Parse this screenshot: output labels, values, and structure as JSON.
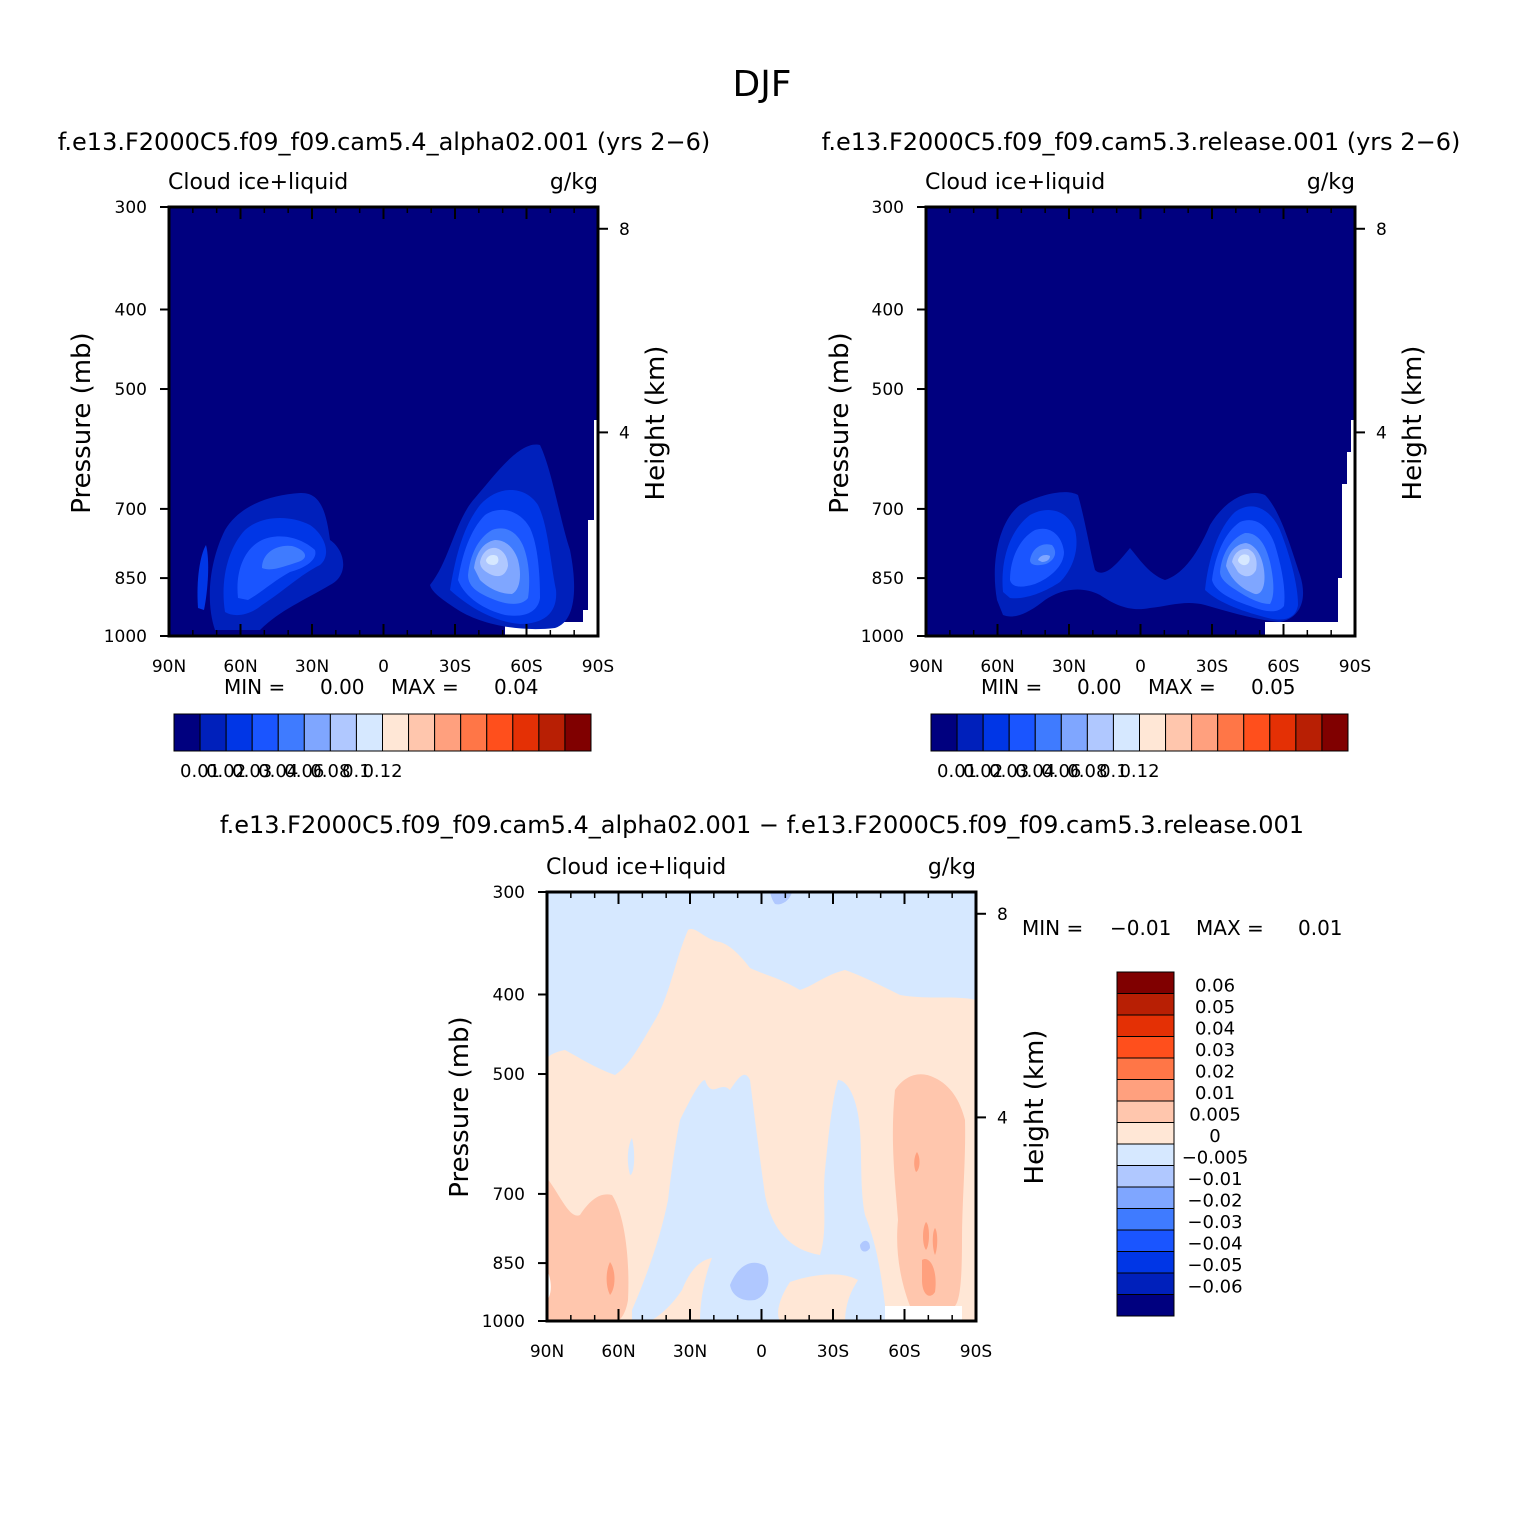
{
  "figure": {
    "title": "DJF"
  },
  "palettes": {
    "abs": [
      "#00007f",
      "#0020bb",
      "#0036e6",
      "#1a55ff",
      "#3f7bff",
      "#7fa6ff",
      "#b0c8ff",
      "#d6e8ff",
      "#ffe7d6",
      "#ffc6ad",
      "#ffa07e",
      "#ff7647",
      "#ff4f1c",
      "#e43005",
      "#b81f04",
      "#800000"
    ],
    "diff": [
      "#00007f",
      "#0020bb",
      "#0036e6",
      "#1a55ff",
      "#3f7bff",
      "#7fa6ff",
      "#b0c8ff",
      "#d6e8ff",
      "#ffe7d6",
      "#ffc6ad",
      "#ffa07e",
      "#ff7647",
      "#ff4f1c",
      "#e43005",
      "#b81f04",
      "#800000"
    ]
  },
  "shared_axes": {
    "x_ticks": [
      "90N",
      "60N",
      "30N",
      "0",
      "30S",
      "60S",
      "90S"
    ],
    "y_ticks": [
      "300",
      "400",
      "500",
      "700",
      "850",
      "1000"
    ],
    "y_right_ticks": [
      "8",
      "4"
    ],
    "ylabel": "Pressure (mb)",
    "ylabel_right": "Height (km)",
    "variable": "Cloud ice+liquid",
    "units": "g/kg"
  },
  "panels": {
    "left": {
      "case_title": "f.e13.F2000C5.f09_f09.cam5.4_alpha02.001 (yrs 2−6)",
      "min_label": "MIN =",
      "min_value": "0.00",
      "max_label": "MAX =",
      "max_value": "0.04",
      "colorbar_labels": [
        "0.01",
        "0.02",
        "0.03",
        "0.04",
        "0.06",
        "0.08",
        "0.1",
        "0.12"
      ]
    },
    "right": {
      "case_title": "f.e13.F2000C5.f09_f09.cam5.3.release.001 (yrs 2−6)",
      "min_label": "MIN =",
      "min_value": "0.00",
      "max_label": "MAX =",
      "max_value": "0.05",
      "colorbar_labels": [
        "0.01",
        "0.02",
        "0.03",
        "0.04",
        "0.06",
        "0.08",
        "0.1",
        "0.12"
      ]
    },
    "diff": {
      "case_title": "f.e13.F2000C5.f09_f09.cam5.4_alpha02.001 − f.e13.F2000C5.f09_f09.cam5.3.release.001",
      "min_label": "MIN =",
      "min_value": "−0.01",
      "max_label": "MAX =",
      "max_value": "0.01",
      "colorbar_labels": [
        "0.06",
        "0.05",
        "0.04",
        "0.03",
        "0.02",
        "0.01",
        "0.005",
        "0",
        "−0.005",
        "−0.01",
        "−0.02",
        "−0.03",
        "−0.04",
        "−0.05",
        "−0.06"
      ]
    }
  },
  "chart_data": [
    {
      "type": "heatmap",
      "title": "f.e13.F2000C5.f09_f09.cam5.4_alpha02.001 (yrs 2−6)",
      "subtitle": "Cloud ice+liquid",
      "units": "g/kg",
      "xlabel": "",
      "ylabel": "Pressure (mb)",
      "ylabel_right": "Height (km)",
      "x_ticks": [
        "90N",
        "60N",
        "30N",
        "0",
        "30S",
        "60S",
        "90S"
      ],
      "y_range": [
        1000,
        300
      ],
      "min": 0.0,
      "max": 0.04,
      "levels": [
        0.01,
        0.02,
        0.03,
        0.04,
        0.06,
        0.08,
        0.1,
        0.12
      ]
    },
    {
      "type": "heatmap",
      "title": "f.e13.F2000C5.f09_f09.cam5.3.release.001 (yrs 2−6)",
      "subtitle": "Cloud ice+liquid",
      "units": "g/kg",
      "xlabel": "",
      "ylabel": "Pressure (mb)",
      "ylabel_right": "Height (km)",
      "x_ticks": [
        "90N",
        "60N",
        "30N",
        "0",
        "30S",
        "60S",
        "90S"
      ],
      "y_range": [
        1000,
        300
      ],
      "min": 0.0,
      "max": 0.05,
      "levels": [
        0.01,
        0.02,
        0.03,
        0.04,
        0.06,
        0.08,
        0.1,
        0.12
      ]
    },
    {
      "type": "heatmap",
      "title": "f.e13.F2000C5.f09_f09.cam5.4_alpha02.001 − f.e13.F2000C5.f09_f09.cam5.3.release.001",
      "subtitle": "Cloud ice+liquid",
      "units": "g/kg",
      "xlabel": "",
      "ylabel": "Pressure (mb)",
      "ylabel_right": "Height (km)",
      "x_ticks": [
        "90N",
        "60N",
        "30N",
        "0",
        "30S",
        "60S",
        "90S"
      ],
      "y_range": [
        1000,
        300
      ],
      "min": -0.01,
      "max": 0.01,
      "levels": [
        -0.06,
        -0.05,
        -0.04,
        -0.03,
        -0.02,
        -0.01,
        -0.005,
        0,
        0.005,
        0.01,
        0.02,
        0.03,
        0.04,
        0.05,
        0.06
      ]
    }
  ]
}
